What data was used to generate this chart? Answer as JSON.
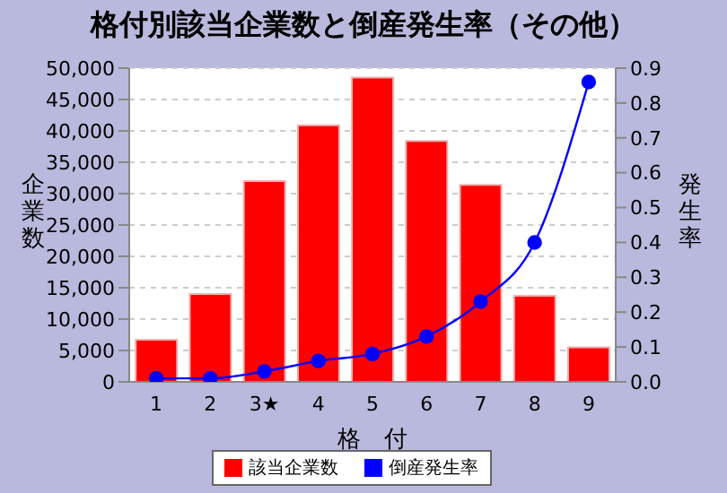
{
  "chart_data": {
    "type": "bar",
    "title": "格付別該当企業数と倒産発生率（その他）",
    "xlabel": "格　付",
    "ylabel": "企業数",
    "y2label": "発生率",
    "categories": [
      "1",
      "2",
      "3★",
      "4",
      "5",
      "6",
      "7",
      "8",
      "9"
    ],
    "series": [
      {
        "name": "該当企業数",
        "color": "#ff0000",
        "values": [
          6700,
          14000,
          32000,
          40900,
          48500,
          38400,
          31400,
          13700,
          5500
        ]
      },
      {
        "name": "倒産発生率",
        "type": "line",
        "axis": "y2",
        "color": "#0000ff",
        "marker": "circle",
        "values": [
          0.01,
          0.01,
          0.03,
          0.06,
          0.08,
          0.13,
          0.23,
          0.4,
          0.86
        ]
      }
    ],
    "ylim": [
      0,
      50000
    ],
    "yticks": [
      {
        "value": 0,
        "label": "0"
      },
      {
        "value": 5000,
        "label": "5,000"
      },
      {
        "value": 10000,
        "label": "10,000"
      },
      {
        "value": 15000,
        "label": "15,000"
      },
      {
        "value": 20000,
        "label": "20,000"
      },
      {
        "value": 25000,
        "label": "25,000"
      },
      {
        "value": 30000,
        "label": "30,000"
      },
      {
        "value": 35000,
        "label": "35,000"
      },
      {
        "value": 40000,
        "label": "40,000"
      },
      {
        "value": 45000,
        "label": "45,000"
      },
      {
        "value": 50000,
        "label": "50,000"
      }
    ],
    "y2lim": [
      0,
      0.9
    ],
    "y2ticks": [
      {
        "value": 0,
        "label": "0.0"
      },
      0.1,
      0.2,
      0.3,
      0.4,
      0.5,
      0.6,
      0.7,
      0.8,
      0.9
    ],
    "grid": "y",
    "legend": "bottom"
  }
}
